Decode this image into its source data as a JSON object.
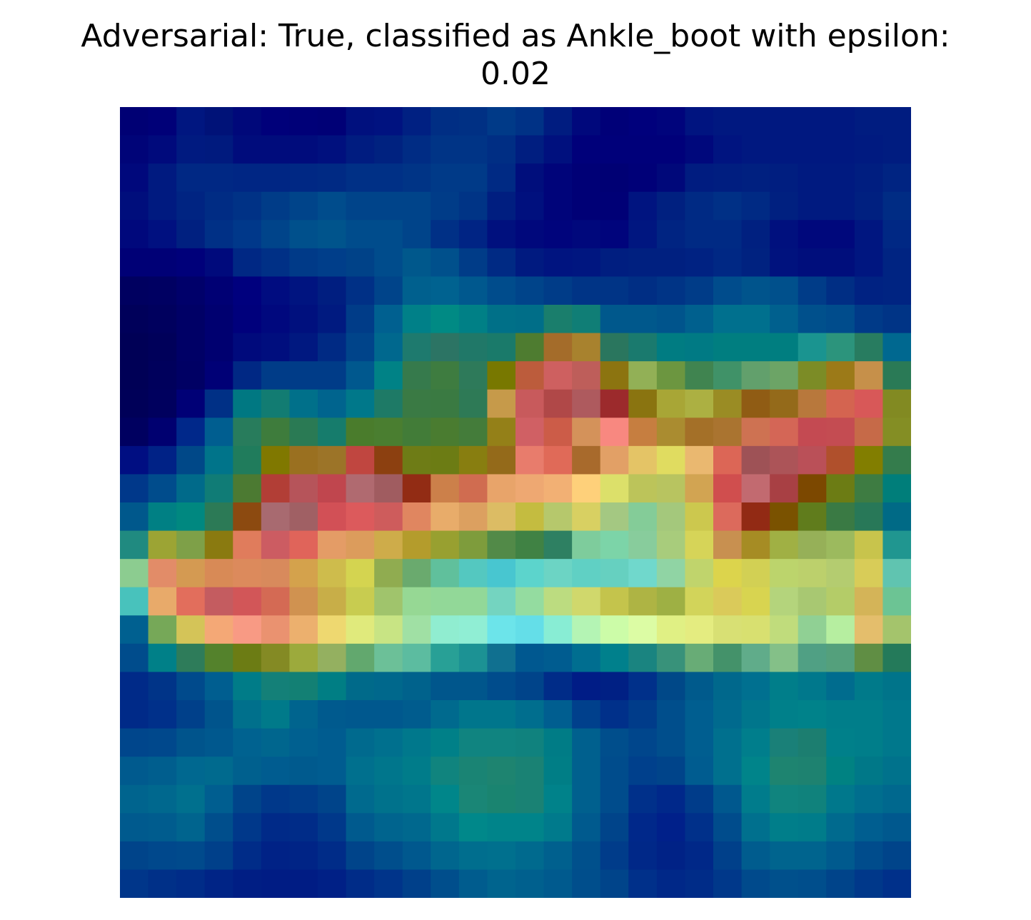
{
  "chart_data": {
    "type": "heatmap",
    "title_line1": "Adversarial: True, classified as Ankle_boot with epsilon:",
    "title_line2": "0.02",
    "grid": false,
    "axes_visible": false,
    "rows": 28,
    "cols": 28,
    "colormap": "overlay: jet-style saliency heatmap blended over a grayscale 28x28 image",
    "cells": [
      [
        "#000074",
        "#000078",
        "#001680",
        "#001278",
        "#00087A",
        "#00007A",
        "#000078",
        "#000076",
        "#00107E",
        "#001280",
        "#002082",
        "#002E84",
        "#003084",
        "#003A88",
        "#003286",
        "#001C80",
        "#00087C",
        "#000078",
        "#00007C",
        "#00047C",
        "#001480",
        "#001880",
        "#001880",
        "#001880",
        "#001880",
        "#001880",
        "#001C80",
        "#001C80"
      ],
      [
        "#000478",
        "#000A7C",
        "#001A80",
        "#001A7E",
        "#000C7C",
        "#000C7C",
        "#000C7C",
        "#00107E",
        "#001C80",
        "#002280",
        "#002C84",
        "#003486",
        "#003486",
        "#002E84",
        "#001E80",
        "#00107E",
        "#00007A",
        "#00007A",
        "#00007A",
        "#00007A",
        "#00087C",
        "#001480",
        "#001880",
        "#001880",
        "#001880",
        "#001880",
        "#001A80",
        "#001C80"
      ],
      [
        "#00087C",
        "#001A80",
        "#002884",
        "#002884",
        "#002684",
        "#002684",
        "#002884",
        "#002A84",
        "#003086",
        "#003086",
        "#003486",
        "#003A88",
        "#003A88",
        "#002A84",
        "#000E7C",
        "#00047A",
        "#000076",
        "#000074",
        "#000078",
        "#00087A",
        "#001C80",
        "#001E80",
        "#002080",
        "#001E80",
        "#001A80",
        "#001A80",
        "#001E80",
        "#002482"
      ],
      [
        "#000E7C",
        "#001A80",
        "#002482",
        "#002C84",
        "#003286",
        "#003C88",
        "#00448A",
        "#004C8C",
        "#00448A",
        "#00448A",
        "#00448A",
        "#003C88",
        "#003486",
        "#001E80",
        "#00107E",
        "#00047A",
        "#000076",
        "#000076",
        "#001480",
        "#002080",
        "#002A84",
        "#003086",
        "#002A84",
        "#002080",
        "#001A80",
        "#001A80",
        "#002080",
        "#002C84"
      ],
      [
        "#00087C",
        "#001080",
        "#002080",
        "#003086",
        "#00388A",
        "#00448A",
        "#00508C",
        "#00548C",
        "#004C8C",
        "#004C8C",
        "#00448A",
        "#003086",
        "#002484",
        "#00107E",
        "#00087C",
        "#00047C",
        "#00087C",
        "#00047C",
        "#001680",
        "#002482",
        "#002A84",
        "#002A84",
        "#002080",
        "#00107E",
        "#00087C",
        "#00087C",
        "#001680",
        "#002884"
      ],
      [
        "#000076",
        "#000076",
        "#00007A",
        "#000A7C",
        "#002884",
        "#003086",
        "#003A88",
        "#003E8A",
        "#004288",
        "#004C8C",
        "#00588C",
        "#00508C",
        "#003C88",
        "#002A84",
        "#001A80",
        "#001480",
        "#001680",
        "#001E80",
        "#002080",
        "#002080",
        "#002282",
        "#002884",
        "#002280",
        "#00127E",
        "#000E7C",
        "#000E7C",
        "#001680",
        "#002482"
      ],
      [
        "#000060",
        "#000062",
        "#00006A",
        "#000074",
        "#00007E",
        "#000C80",
        "#001480",
        "#001E80",
        "#003086",
        "#00448A",
        "#00608E",
        "#006290",
        "#00588E",
        "#004C8C",
        "#00448A",
        "#003C88",
        "#003486",
        "#003486",
        "#002E84",
        "#003486",
        "#003C88",
        "#004C8C",
        "#00548C",
        "#00508C",
        "#003C88",
        "#002E84",
        "#002282",
        "#002482"
      ],
      [
        "#00005A",
        "#00005E",
        "#000066",
        "#000070",
        "#00007C",
        "#00087E",
        "#00107E",
        "#001A80",
        "#003C88",
        "#006090",
        "#008088",
        "#008A84",
        "#008086",
        "#007088",
        "#006E88",
        "#1A7E6C",
        "#107E76",
        "#00588C",
        "#00588C",
        "#00548C",
        "#00608E",
        "#00708E",
        "#00708E",
        "#00608E",
        "#00508C",
        "#004C8C",
        "#003A88",
        "#003486"
      ],
      [
        "#000056",
        "#00005A",
        "#000066",
        "#000070",
        "#000A7C",
        "#000E7E",
        "#001880",
        "#002A84",
        "#00448A",
        "#00688E",
        "#1E7A6E",
        "#2C7464",
        "#207868",
        "#1A7A6A",
        "#4E7C30",
        "#A46C2A",
        "#A8822E",
        "#2A765E",
        "#1A7A6E",
        "#007C82",
        "#007A84",
        "#007E80",
        "#007E80",
        "#007E80",
        "#1A9490",
        "#2C947C",
        "#287C60",
        "#006890"
      ],
      [
        "#000056",
        "#00005C",
        "#000064",
        "#000076",
        "#002884",
        "#003C88",
        "#003C88",
        "#003C88",
        "#00588E",
        "#008286",
        "#367A4C",
        "#3E7C40",
        "#2E7A5A",
        "#787800",
        "#BC5C3C",
        "#CE6060",
        "#BE5E5A",
        "#8C7410",
        "#92B056",
        "#6C9640",
        "#408450",
        "#409268",
        "#62A06C",
        "#6CA466",
        "#7C8C26",
        "#9C7A18",
        "#C6904A",
        "#2A7A56"
      ],
      [
        "#000058",
        "#00005E",
        "#000076",
        "#003086",
        "#007882",
        "#127C72",
        "#00708A",
        "#00648E",
        "#00788A",
        "#1E7A66",
        "#3A7A44",
        "#3A7A42",
        "#2E7A56",
        "#C69A4A",
        "#C85A5C",
        "#B04848",
        "#AE5A5E",
        "#9C2A2C",
        "#8A7410",
        "#A8A636",
        "#ACB042",
        "#9A8C24",
        "#905C14",
        "#946A1A",
        "#B8783C",
        "#D46450",
        "#D85858",
        "#828A22"
      ],
      [
        "#000060",
        "#000070",
        "#00288A",
        "#005E90",
        "#287C5C",
        "#3E7C3C",
        "#2A7A54",
        "#167C6C",
        "#4A7C2C",
        "#4A7E30",
        "#427C38",
        "#4A7C30",
        "#447C3A",
        "#948018",
        "#D06064",
        "#CC5C48",
        "#D4925A",
        "#F88880",
        "#C67E40",
        "#AA8C30",
        "#A47028",
        "#AA7430",
        "#CE7252",
        "#D46656",
        "#C44A52",
        "#C44C52",
        "#C66A48",
        "#848E24"
      ],
      [
        "#000E82",
        "#002286",
        "#004888",
        "#00748A",
        "#207C5C",
        "#807800",
        "#9A7020",
        "#9C7428",
        "#C04640",
        "#8C4010",
        "#6E7C16",
        "#6C7C14",
        "#887E10",
        "#946A1A",
        "#E87C6C",
        "#E06A58",
        "#A86A2C",
        "#E2A066",
        "#E4C466",
        "#E0DC60",
        "#EAB870",
        "#DC6656",
        "#9E5256",
        "#AC5458",
        "#BA5058",
        "#B0502C",
        "#827E00",
        "#347C4C"
      ],
      [
        "#00388A",
        "#004C8C",
        "#006A8A",
        "#107C76",
        "#4C7A32",
        "#B23E36",
        "#B6545A",
        "#C0464E",
        "#B06A70",
        "#A05C60",
        "#922C14",
        "#CC804A",
        "#D06C50",
        "#E8A46A",
        "#EEA872",
        "#F2B074",
        "#FED07A",
        "#DCE06A",
        "#BCC45A",
        "#B8C460",
        "#D2A452",
        "#D04E4E",
        "#C26A70",
        "#A84044",
        "#7C4800",
        "#6C7C14",
        "#3E7C42",
        "#007E7A"
      ],
      [
        "#00588C",
        "#008084",
        "#008880",
        "#2C7A56",
        "#8C4A10",
        "#A86A70",
        "#A06064",
        "#D25056",
        "#DC5A5C",
        "#CE5C5C",
        "#E08660",
        "#E8AC6A",
        "#DCA060",
        "#DCBC64",
        "#C4BC40",
        "#B6C86C",
        "#D8D062",
        "#A4C882",
        "#84CC98",
        "#A4C87C",
        "#CCC84E",
        "#DC6A5C",
        "#922A14",
        "#7A5200",
        "#607C1C",
        "#3A7A44",
        "#287858",
        "#006A86"
      ],
      [
        "#208A80",
        "#9CA434",
        "#7EA048",
        "#8A7A10",
        "#E07C5C",
        "#CC5C62",
        "#E0645A",
        "#E49C66",
        "#DC9C5C",
        "#CEAC4A",
        "#B49C2C",
        "#98A030",
        "#7E9C3C",
        "#528A48",
        "#408244",
        "#2E8062",
        "#7ECC9C",
        "#7CD4A8",
        "#88CC9C",
        "#A8CC7C",
        "#D6D458",
        "#C89050",
        "#A68C24",
        "#A0B044",
        "#96B058",
        "#9CBA5E",
        "#C8C44C",
        "#209690"
      ],
      [
        "#8CCC90",
        "#E28C68",
        "#D49A52",
        "#D88A56",
        "#DC8A5C",
        "#D88A5C",
        "#D4A24C",
        "#CEBC4C",
        "#D4D450",
        "#90AC50",
        "#6AAA6E",
        "#60C09C",
        "#54C8C0",
        "#48C6D0",
        "#5CD4CC",
        "#6CD4C4",
        "#60D0C4",
        "#66D0C0",
        "#70D8CC",
        "#90D4A4",
        "#C0D46C",
        "#DCD44C",
        "#D2D054",
        "#BCD46C",
        "#BCD06C",
        "#B4CC70",
        "#D8CC58",
        "#60C4B0"
      ],
      [
        "#48C2BC",
        "#E8AA6A",
        "#E26E5C",
        "#C45C60",
        "#D25658",
        "#D46A54",
        "#D09250",
        "#C8AE48",
        "#C8CC50",
        "#A0C46C",
        "#96D894",
        "#92D898",
        "#92D898",
        "#74D4C0",
        "#94DCA0",
        "#BCDC80",
        "#D0D86C",
        "#C4C44C",
        "#AEB444",
        "#9EB044",
        "#D2D45A",
        "#DACA5A",
        "#D8D450",
        "#B4D47C",
        "#A8C872",
        "#B4CC68",
        "#D4B458",
        "#6CC494"
      ],
      [
        "#006090",
        "#76A858",
        "#D4C458",
        "#F4A876",
        "#F89A84",
        "#EA9270",
        "#ECB06E",
        "#EED870",
        "#E0EA7C",
        "#C8E484",
        "#A0E0A4",
        "#90EDD0",
        "#90EED4",
        "#6CE4EA",
        "#64DEE8",
        "#88EDD4",
        "#B4F4B4",
        "#CCFCA8",
        "#DCFCA4",
        "#E0F084",
        "#E4EC80",
        "#D8E074",
        "#D8E070",
        "#C0DC7C",
        "#90D094",
        "#B6EEA0",
        "#E4BE6C",
        "#A4C46C"
      ],
      [
        "#004C8C",
        "#008088",
        "#2E7C5A",
        "#54822C",
        "#6C7C14",
        "#848A24",
        "#9CAA3C",
        "#94B060",
        "#62A86E",
        "#6CC098",
        "#5CBCA0",
        "#28A096",
        "#1C9294",
        "#107090",
        "#005890",
        "#005C90",
        "#006E90",
        "#00808C",
        "#1A8480",
        "#38927A",
        "#68AC76",
        "#44926A",
        "#60AC8A",
        "#84C088",
        "#50A084",
        "#54A07C",
        "#608E44",
        "#247A5A"
      ],
      [
        "#002A88",
        "#003488",
        "#004A8C",
        "#005E90",
        "#007C88",
        "#148078",
        "#138074",
        "#007E84",
        "#006A8A",
        "#00688C",
        "#00628C",
        "#00568C",
        "#00568C",
        "#004C8C",
        "#00448A",
        "#002C88",
        "#001C86",
        "#002084",
        "#00308A",
        "#004888",
        "#005A8C",
        "#00688C",
        "#007090",
        "#007E8A",
        "#00788C",
        "#006C8E",
        "#007A8A",
        "#00748A"
      ],
      [
        "#002A88",
        "#00308A",
        "#00408A",
        "#00548C",
        "#00708C",
        "#007A8A",
        "#00648E",
        "#005A8E",
        "#00588E",
        "#00588E",
        "#005C8E",
        "#006A8E",
        "#00768C",
        "#00768C",
        "#006E8E",
        "#005E90",
        "#00408C",
        "#00308A",
        "#003C8A",
        "#004E8C",
        "#005E90",
        "#006A8E",
        "#00768C",
        "#00808A",
        "#00828A",
        "#007E8A",
        "#007E8A",
        "#00788C"
      ],
      [
        "#00468C",
        "#00488C",
        "#00548C",
        "#00588E",
        "#006290",
        "#00668E",
        "#006090",
        "#005C90",
        "#006A8E",
        "#00708E",
        "#00788C",
        "#008088",
        "#108480",
        "#108480",
        "#10827E",
        "#007C86",
        "#00608E",
        "#004E8C",
        "#00468C",
        "#004E8C",
        "#005E90",
        "#00708E",
        "#007E8C",
        "#1A8078",
        "#1C7E70",
        "#00808A",
        "#007E8A",
        "#00788C"
      ],
      [
        "#005A8E",
        "#005E8E",
        "#006890",
        "#006A8E",
        "#00608E",
        "#005C90",
        "#005A8E",
        "#005C90",
        "#00708E",
        "#00768C",
        "#007C8A",
        "#10847E",
        "#1A8474",
        "#1E8470",
        "#1A8274",
        "#007E86",
        "#00608E",
        "#004C8C",
        "#00408C",
        "#00448A",
        "#005C90",
        "#00708E",
        "#00848A",
        "#1E8470",
        "#1E8270",
        "#008282",
        "#007888",
        "#00728C"
      ],
      [
        "#00648E",
        "#00688E",
        "#00708E",
        "#005E90",
        "#00448A",
        "#00388A",
        "#003C8A",
        "#00448A",
        "#006A8E",
        "#00728C",
        "#00768C",
        "#00868A",
        "#1A8676",
        "#1A8470",
        "#1A8274",
        "#00828A",
        "#00608E",
        "#004C8C",
        "#00308A",
        "#00288A",
        "#003C8A",
        "#00588E",
        "#007C8C",
        "#10847E",
        "#10827C",
        "#00788C",
        "#006E8E",
        "#00688E"
      ],
      [
        "#005A8E",
        "#005C8E",
        "#00648E",
        "#004E8C",
        "#00388A",
        "#002A88",
        "#002C88",
        "#00388A",
        "#005A8E",
        "#00648E",
        "#00688E",
        "#00788C",
        "#00888A",
        "#00848A",
        "#00848A",
        "#007A8C",
        "#005A8E",
        "#00448A",
        "#00288A",
        "#00208A",
        "#00308A",
        "#004C8C",
        "#00708E",
        "#007E8A",
        "#007C8A",
        "#006A8E",
        "#005E90",
        "#00588E"
      ],
      [
        "#00448A",
        "#00488C",
        "#004A8C",
        "#00408A",
        "#002C88",
        "#002286",
        "#002486",
        "#002C88",
        "#00448A",
        "#004E8C",
        "#00588E",
        "#00668E",
        "#006E8E",
        "#00708E",
        "#006A8E",
        "#00608E",
        "#00508C",
        "#003C8A",
        "#002888",
        "#002286",
        "#002888",
        "#00408A",
        "#005C8E",
        "#00648E",
        "#00648E",
        "#005A8E",
        "#004C8C",
        "#00448A"
      ],
      [
        "#00368A",
        "#003088",
        "#002C88",
        "#002486",
        "#001E84",
        "#001C84",
        "#001C84",
        "#002086",
        "#002C88",
        "#00348A",
        "#00408A",
        "#004E8C",
        "#005C8E",
        "#00648E",
        "#00608E",
        "#005A8E",
        "#004E8C",
        "#00448A",
        "#00308A",
        "#002888",
        "#002C88",
        "#00388A",
        "#004A8C",
        "#00508C",
        "#004E8C",
        "#00448A",
        "#00388A",
        "#00308A"
      ]
    ]
  }
}
